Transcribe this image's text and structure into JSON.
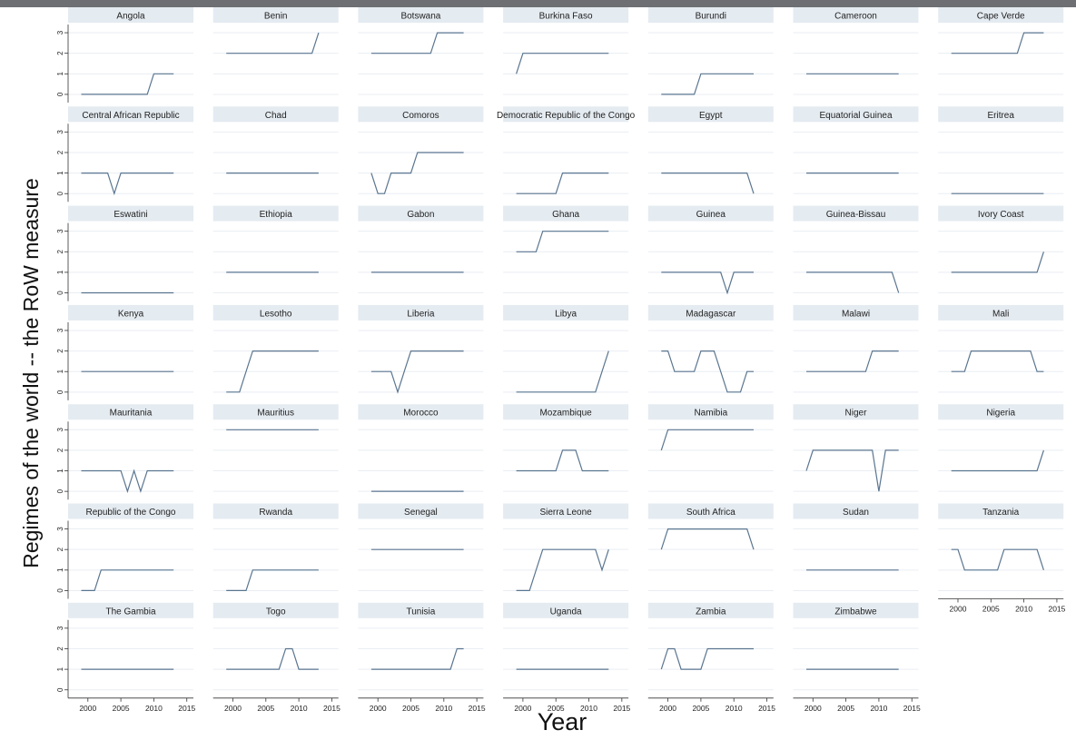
{
  "chart_data": {
    "type": "line",
    "xlabel": "Year",
    "ylabel": "Regimes of the world -- the RoW measure",
    "x": [
      1999,
      2000,
      2001,
      2002,
      2003,
      2004,
      2005,
      2006,
      2007,
      2008,
      2009,
      2010,
      2011,
      2012,
      2013
    ],
    "xlim": [
      1997,
      2016
    ],
    "ylim": [
      -0.4,
      3.4
    ],
    "x_ticks": [
      "2000",
      "2005",
      "2010",
      "2015"
    ],
    "y_ticks": [
      "0",
      "1",
      "2",
      "3"
    ],
    "grid": true,
    "layout": "facet-grid",
    "columns": 7,
    "series": [
      {
        "name": "Angola",
        "values": [
          0,
          0,
          0,
          0,
          0,
          0,
          0,
          0,
          0,
          0,
          0,
          1,
          1,
          1,
          1
        ]
      },
      {
        "name": "Benin",
        "values": [
          2,
          2,
          2,
          2,
          2,
          2,
          2,
          2,
          2,
          2,
          2,
          2,
          2,
          2,
          3
        ]
      },
      {
        "name": "Botswana",
        "values": [
          2,
          2,
          2,
          2,
          2,
          2,
          2,
          2,
          2,
          2,
          3,
          3,
          3,
          3,
          3
        ]
      },
      {
        "name": "Burkina Faso",
        "values": [
          1,
          2,
          2,
          2,
          2,
          2,
          2,
          2,
          2,
          2,
          2,
          2,
          2,
          2,
          2
        ]
      },
      {
        "name": "Burundi",
        "values": [
          0,
          0,
          0,
          0,
          0,
          0,
          1,
          1,
          1,
          1,
          1,
          1,
          1,
          1,
          1
        ]
      },
      {
        "name": "Cameroon",
        "values": [
          1,
          1,
          1,
          1,
          1,
          1,
          1,
          1,
          1,
          1,
          1,
          1,
          1,
          1,
          1
        ]
      },
      {
        "name": "Cape Verde",
        "values": [
          2,
          2,
          2,
          2,
          2,
          2,
          2,
          2,
          2,
          2,
          2,
          3,
          3,
          3,
          3
        ]
      },
      {
        "name": "Central African Republic",
        "values": [
          1,
          1,
          1,
          1,
          1,
          0,
          1,
          1,
          1,
          1,
          1,
          1,
          1,
          1,
          1
        ]
      },
      {
        "name": "Chad",
        "values": [
          1,
          1,
          1,
          1,
          1,
          1,
          1,
          1,
          1,
          1,
          1,
          1,
          1,
          1,
          1
        ]
      },
      {
        "name": "Comoros",
        "values": [
          1,
          0,
          0,
          1,
          1,
          1,
          1,
          2,
          2,
          2,
          2,
          2,
          2,
          2,
          2
        ]
      },
      {
        "name": "Democratic Republic of the Congo",
        "values": [
          0,
          0,
          0,
          0,
          0,
          0,
          0,
          1,
          1,
          1,
          1,
          1,
          1,
          1,
          1
        ]
      },
      {
        "name": "Egypt",
        "values": [
          1,
          1,
          1,
          1,
          1,
          1,
          1,
          1,
          1,
          1,
          1,
          1,
          1,
          1,
          0
        ]
      },
      {
        "name": "Equatorial Guinea",
        "values": [
          1,
          1,
          1,
          1,
          1,
          1,
          1,
          1,
          1,
          1,
          1,
          1,
          1,
          1,
          1
        ]
      },
      {
        "name": "Eritrea",
        "values": [
          0,
          0,
          0,
          0,
          0,
          0,
          0,
          0,
          0,
          0,
          0,
          0,
          0,
          0,
          0
        ]
      },
      {
        "name": "Eswatini",
        "values": [
          0,
          0,
          0,
          0,
          0,
          0,
          0,
          0,
          0,
          0,
          0,
          0,
          0,
          0,
          0
        ]
      },
      {
        "name": "Ethiopia",
        "values": [
          1,
          1,
          1,
          1,
          1,
          1,
          1,
          1,
          1,
          1,
          1,
          1,
          1,
          1,
          1
        ]
      },
      {
        "name": "Gabon",
        "values": [
          1,
          1,
          1,
          1,
          1,
          1,
          1,
          1,
          1,
          1,
          1,
          1,
          1,
          1,
          1
        ]
      },
      {
        "name": "Ghana",
        "values": [
          2,
          2,
          2,
          2,
          3,
          3,
          3,
          3,
          3,
          3,
          3,
          3,
          3,
          3,
          3
        ]
      },
      {
        "name": "Guinea",
        "values": [
          1,
          1,
          1,
          1,
          1,
          1,
          1,
          1,
          1,
          1,
          0,
          1,
          1,
          1,
          1
        ]
      },
      {
        "name": "Guinea-Bissau",
        "values": [
          1,
          1,
          1,
          1,
          1,
          1,
          1,
          1,
          1,
          1,
          1,
          1,
          1,
          1,
          0
        ]
      },
      {
        "name": "Ivory Coast",
        "values": [
          1,
          1,
          1,
          1,
          1,
          1,
          1,
          1,
          1,
          1,
          1,
          1,
          1,
          1,
          2
        ]
      },
      {
        "name": "Kenya",
        "values": [
          1,
          1,
          1,
          1,
          1,
          1,
          1,
          1,
          1,
          1,
          1,
          1,
          1,
          1,
          1
        ]
      },
      {
        "name": "Lesotho",
        "values": [
          0,
          0,
          0,
          1,
          2,
          2,
          2,
          2,
          2,
          2,
          2,
          2,
          2,
          2,
          2
        ]
      },
      {
        "name": "Liberia",
        "values": [
          1,
          1,
          1,
          1,
          0,
          1,
          2,
          2,
          2,
          2,
          2,
          2,
          2,
          2,
          2
        ]
      },
      {
        "name": "Libya",
        "values": [
          0,
          0,
          0,
          0,
          0,
          0,
          0,
          0,
          0,
          0,
          0,
          0,
          0,
          1,
          2
        ]
      },
      {
        "name": "Madagascar",
        "values": [
          2,
          2,
          1,
          1,
          1,
          1,
          2,
          2,
          2,
          1,
          0,
          0,
          0,
          1,
          1
        ]
      },
      {
        "name": "Malawi",
        "values": [
          1,
          1,
          1,
          1,
          1,
          1,
          1,
          1,
          1,
          1,
          2,
          2,
          2,
          2,
          2
        ]
      },
      {
        "name": "Mali",
        "values": [
          1,
          1,
          1,
          2,
          2,
          2,
          2,
          2,
          2,
          2,
          2,
          2,
          2,
          1,
          1
        ]
      },
      {
        "name": "Mauritania",
        "values": [
          1,
          1,
          1,
          1,
          1,
          1,
          1,
          0,
          1,
          0,
          1,
          1,
          1,
          1,
          1
        ]
      },
      {
        "name": "Mauritius",
        "values": [
          3,
          3,
          3,
          3,
          3,
          3,
          3,
          3,
          3,
          3,
          3,
          3,
          3,
          3,
          3
        ]
      },
      {
        "name": "Morocco",
        "values": [
          0,
          0,
          0,
          0,
          0,
          0,
          0,
          0,
          0,
          0,
          0,
          0,
          0,
          0,
          0
        ]
      },
      {
        "name": "Mozambique",
        "values": [
          1,
          1,
          1,
          1,
          1,
          1,
          1,
          2,
          2,
          2,
          1,
          1,
          1,
          1,
          1
        ]
      },
      {
        "name": "Namibia",
        "values": [
          2,
          3,
          3,
          3,
          3,
          3,
          3,
          3,
          3,
          3,
          3,
          3,
          3,
          3,
          3
        ]
      },
      {
        "name": "Niger",
        "values": [
          1,
          2,
          2,
          2,
          2,
          2,
          2,
          2,
          2,
          2,
          2,
          0,
          2,
          2,
          2
        ]
      },
      {
        "name": "Nigeria",
        "values": [
          1,
          1,
          1,
          1,
          1,
          1,
          1,
          1,
          1,
          1,
          1,
          1,
          1,
          1,
          2
        ]
      },
      {
        "name": "Republic of the Congo",
        "values": [
          0,
          0,
          0,
          1,
          1,
          1,
          1,
          1,
          1,
          1,
          1,
          1,
          1,
          1,
          1
        ]
      },
      {
        "name": "Rwanda",
        "values": [
          0,
          0,
          0,
          0,
          1,
          1,
          1,
          1,
          1,
          1,
          1,
          1,
          1,
          1,
          1
        ]
      },
      {
        "name": "Senegal",
        "values": [
          2,
          2,
          2,
          2,
          2,
          2,
          2,
          2,
          2,
          2,
          2,
          2,
          2,
          2,
          2
        ]
      },
      {
        "name": "Sierra Leone",
        "values": [
          0,
          0,
          0,
          1,
          2,
          2,
          2,
          2,
          2,
          2,
          2,
          2,
          2,
          1,
          2
        ]
      },
      {
        "name": "South Africa",
        "values": [
          2,
          3,
          3,
          3,
          3,
          3,
          3,
          3,
          3,
          3,
          3,
          3,
          3,
          3,
          2
        ]
      },
      {
        "name": "Sudan",
        "values": [
          1,
          1,
          1,
          1,
          1,
          1,
          1,
          1,
          1,
          1,
          1,
          1,
          1,
          1,
          1
        ]
      },
      {
        "name": "Tanzania",
        "values": [
          2,
          2,
          1,
          1,
          1,
          1,
          1,
          1,
          2,
          2,
          2,
          2,
          2,
          2,
          1
        ]
      },
      {
        "name": "The Gambia",
        "values": [
          1,
          1,
          1,
          1,
          1,
          1,
          1,
          1,
          1,
          1,
          1,
          1,
          1,
          1,
          1
        ]
      },
      {
        "name": "Togo",
        "values": [
          1,
          1,
          1,
          1,
          1,
          1,
          1,
          1,
          1,
          2,
          2,
          1,
          1,
          1,
          1
        ]
      },
      {
        "name": "Tunisia",
        "values": [
          1,
          1,
          1,
          1,
          1,
          1,
          1,
          1,
          1,
          1,
          1,
          1,
          1,
          2,
          2
        ]
      },
      {
        "name": "Uganda",
        "values": [
          1,
          1,
          1,
          1,
          1,
          1,
          1,
          1,
          1,
          1,
          1,
          1,
          1,
          1,
          1
        ]
      },
      {
        "name": "Zambia",
        "values": [
          1,
          2,
          2,
          1,
          1,
          1,
          1,
          2,
          2,
          2,
          2,
          2,
          2,
          2,
          2
        ]
      },
      {
        "name": "Zimbabwe",
        "values": [
          1,
          1,
          1,
          1,
          1,
          1,
          1,
          1,
          1,
          1,
          1,
          1,
          1,
          1,
          1
        ]
      }
    ]
  }
}
